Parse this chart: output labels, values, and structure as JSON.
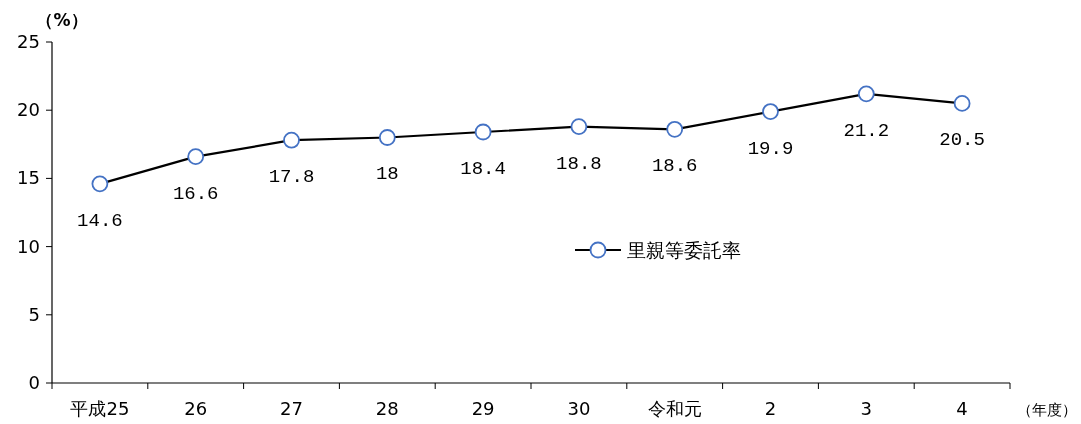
{
  "chart_data": {
    "type": "line",
    "ylabel": "（%）",
    "xlabel": "（年度）",
    "categories": [
      "平成25",
      "26",
      "27",
      "28",
      "29",
      "30",
      "令和元",
      "2",
      "3",
      "4"
    ],
    "series": [
      {
        "name": "里親等委託率",
        "color": "#000000",
        "values": [
          14.6,
          16.6,
          17.8,
          18,
          18.4,
          18.8,
          18.6,
          19.9,
          21.2,
          20.5
        ]
      }
    ],
    "ylim": [
      0,
      25
    ],
    "yticks": [
      0,
      5,
      10,
      15,
      20,
      25
    ],
    "data_labels": true,
    "legend": "center",
    "marker": "circle"
  }
}
